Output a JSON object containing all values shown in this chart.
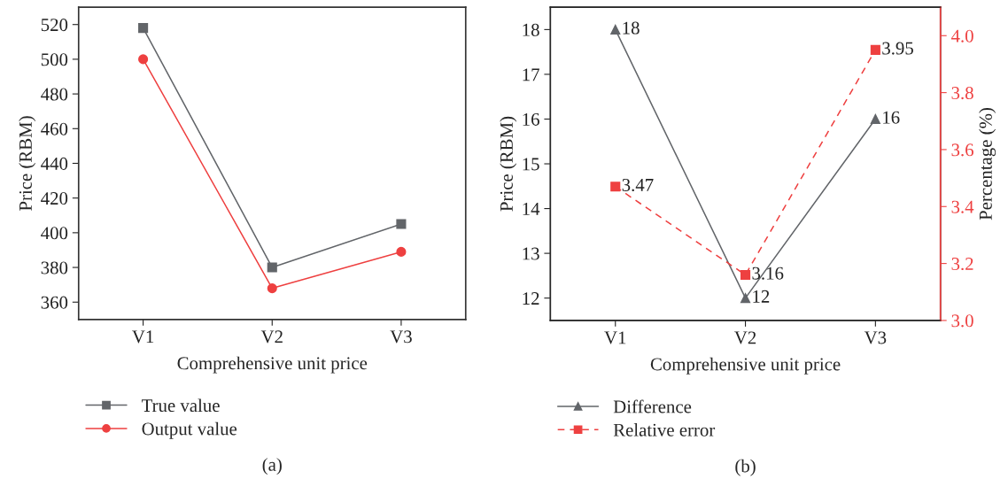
{
  "chart_data": [
    {
      "type": "line",
      "categories": [
        "V1",
        "V2",
        "V3"
      ],
      "xlabel": "Comprehensive unit price",
      "ylabel": "Price (RBM)",
      "ylim": [
        350,
        530
      ],
      "yticks": [
        360,
        380,
        400,
        420,
        440,
        460,
        480,
        500,
        520
      ],
      "legend": "bottom left",
      "annotations": [
        "(a)"
      ],
      "series": [
        {
          "name": "True value",
          "color": "#626569",
          "marker": "square",
          "line_style": "solid",
          "values": [
            518,
            380,
            405
          ]
        },
        {
          "name": "Output value",
          "color": "#ee4040",
          "marker": "circle",
          "line_style": "solid",
          "values": [
            500,
            368,
            389
          ]
        }
      ]
    },
    {
      "type": "line",
      "categories": [
        "V1",
        "V2",
        "V3"
      ],
      "xlabel": "Comprehensive unit price",
      "ylabel": "Price (RBM)",
      "y2label": "Percentage (%)",
      "ylim": [
        11.5,
        18.5
      ],
      "yticks": [
        12,
        13,
        14,
        15,
        16,
        17,
        18
      ],
      "y2lim": [
        3.0,
        4.1
      ],
      "y2ticks": [
        {
          "value": 3.0,
          "label": "3.0"
        },
        {
          "value": 3.2,
          "label": "3.2"
        },
        {
          "value": 3.4,
          "label": "3.4"
        },
        {
          "value": 3.6,
          "label": "3.6"
        },
        {
          "value": 3.8,
          "label": "3.8"
        },
        {
          "value": 4.0,
          "label": "4.0"
        }
      ],
      "legend": "bottom left",
      "data_labels": true,
      "annotations": [
        "(b)"
      ],
      "series": [
        {
          "name": "Difference",
          "color": "#626569",
          "marker": "triangle",
          "line_style": "solid",
          "values": [
            18,
            12,
            16
          ]
        },
        {
          "name": "Relative error",
          "color": "#ee4040",
          "marker": "square",
          "line_style": "dashed",
          "axis": "y2",
          "values": [
            3.47,
            3.16,
            3.95
          ]
        }
      ]
    }
  ]
}
